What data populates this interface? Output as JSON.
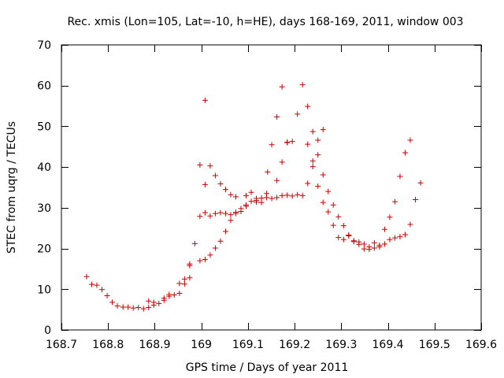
{
  "chart_data": {
    "type": "scatter",
    "title": "Rec. xmis (Lon=105, Lat=-10, h=HE), days 168-169, 2011, window 003",
    "xlabel": "GPS time / Days of year 2011",
    "ylabel": "STEC from uqrg / TECUs",
    "xlim": [
      168.7,
      169.6
    ],
    "ylim": [
      0,
      70
    ],
    "xticks": [
      "168.7",
      "168.8",
      "168.9",
      "169",
      "169.1",
      "169.2",
      "169.3",
      "169.4",
      "169.5",
      "169.6"
    ],
    "yticks": [
      "0",
      "10",
      "20",
      "30",
      "40",
      "50",
      "60",
      "70"
    ],
    "marker": "+",
    "color": "#cc0000",
    "grid": false,
    "series": [
      {
        "name": "STEC",
        "points": [
          [
            168.754,
            13.1
          ],
          [
            168.765,
            11.2
          ],
          [
            168.776,
            11.0
          ],
          [
            168.787,
            9.9
          ],
          [
            168.798,
            8.4
          ],
          [
            168.809,
            6.8
          ],
          [
            168.82,
            5.9
          ],
          [
            168.832,
            5.6
          ],
          [
            168.843,
            5.6
          ],
          [
            168.854,
            5.4
          ],
          [
            168.865,
            5.5
          ],
          [
            168.876,
            5.2
          ],
          [
            168.887,
            5.5
          ],
          [
            168.887,
            7.1
          ],
          [
            168.898,
            6.1
          ],
          [
            168.898,
            6.8
          ],
          [
            168.909,
            6.5
          ],
          [
            168.92,
            7.3
          ],
          [
            168.92,
            7.8
          ],
          [
            168.931,
            8.3
          ],
          [
            168.931,
            8.7
          ],
          [
            168.942,
            8.6
          ],
          [
            168.953,
            9.0
          ],
          [
            168.953,
            11.4
          ],
          [
            168.964,
            11.3
          ],
          [
            168.964,
            12.5
          ],
          [
            168.975,
            15.8
          ],
          [
            168.975,
            12.8
          ],
          [
            168.975,
            16.2
          ],
          [
            168.986,
            21.2
          ],
          [
            168.997,
            17.0
          ],
          [
            169.008,
            17.3
          ],
          [
            169.019,
            18.4
          ],
          [
            169.03,
            20.1
          ],
          [
            169.041,
            21.8
          ],
          [
            169.052,
            24.2
          ],
          [
            169.063,
            26.9
          ],
          [
            169.074,
            28.6
          ],
          [
            169.085,
            29.8
          ],
          [
            169.096,
            30.7
          ],
          [
            169.107,
            31.6
          ],
          [
            169.118,
            31.8
          ],
          [
            169.129,
            32.4
          ],
          [
            169.14,
            32.5
          ],
          [
            169.151,
            32.3
          ],
          [
            169.162,
            32.5
          ],
          [
            169.173,
            33.0
          ],
          [
            169.184,
            33.1
          ],
          [
            169.195,
            32.9
          ],
          [
            169.142,
            38.8
          ],
          [
            168.997,
            27.9
          ],
          [
            169.008,
            28.8
          ],
          [
            169.019,
            28.0
          ],
          [
            169.03,
            28.6
          ],
          [
            169.041,
            28.8
          ],
          [
            169.052,
            28.6
          ],
          [
            169.063,
            28.3
          ],
          [
            169.074,
            28.9
          ],
          [
            169.085,
            29.1
          ],
          [
            169.096,
            30.4
          ],
          [
            169.107,
            33.8
          ],
          [
            169.118,
            32.3
          ],
          [
            169.129,
            31.3
          ],
          [
            169.14,
            33.5
          ],
          [
            169.151,
            45.5
          ],
          [
            169.162,
            36.7
          ],
          [
            169.173,
            41.2
          ],
          [
            169.184,
            46.1
          ],
          [
            169.195,
            46.3
          ],
          [
            168.997,
            40.5
          ],
          [
            169.008,
            35.7
          ],
          [
            169.019,
            40.3
          ],
          [
            169.03,
            37.9
          ],
          [
            169.041,
            35.9
          ],
          [
            169.052,
            34.5
          ],
          [
            169.063,
            33.2
          ],
          [
            169.074,
            32.7
          ],
          [
            169.008,
            56.4
          ],
          [
            169.096,
            33.0
          ],
          [
            169.118,
            31.4
          ],
          [
            169.162,
            52.3
          ],
          [
            169.173,
            59.7
          ],
          [
            169.184,
            46.0
          ],
          [
            169.206,
            53.0
          ],
          [
            169.217,
            60.2
          ],
          [
            169.228,
            54.9
          ],
          [
            169.239,
            48.7
          ],
          [
            169.25,
            46.6
          ],
          [
            169.261,
            49.2
          ],
          [
            169.206,
            33.2
          ],
          [
            169.217,
            33.0
          ],
          [
            169.228,
            36.0
          ],
          [
            169.239,
            40.1
          ],
          [
            169.25,
            43.0
          ],
          [
            169.261,
            38.1
          ],
          [
            169.272,
            34.0
          ],
          [
            169.283,
            30.7
          ],
          [
            169.294,
            27.8
          ],
          [
            169.305,
            25.6
          ],
          [
            169.316,
            23.1
          ],
          [
            169.327,
            21.9
          ],
          [
            169.338,
            21.6
          ],
          [
            169.349,
            21.1
          ],
          [
            169.36,
            20.4
          ],
          [
            169.371,
            20.1
          ],
          [
            169.382,
            20.4
          ],
          [
            169.393,
            21.1
          ],
          [
            169.404,
            22.2
          ],
          [
            169.415,
            22.6
          ],
          [
            169.426,
            22.9
          ],
          [
            169.437,
            23.4
          ],
          [
            169.448,
            25.9
          ],
          [
            169.459,
            32.0
          ],
          [
            169.47,
            36.1
          ],
          [
            169.228,
            45.6
          ],
          [
            169.239,
            41.5
          ],
          [
            169.25,
            35.3
          ],
          [
            169.261,
            31.3
          ],
          [
            169.272,
            29.0
          ],
          [
            169.283,
            25.7
          ],
          [
            169.294,
            22.7
          ],
          [
            169.305,
            22.2
          ],
          [
            169.316,
            23.3
          ],
          [
            169.327,
            21.7
          ],
          [
            169.338,
            21.0
          ],
          [
            169.349,
            19.9
          ],
          [
            169.36,
            19.8
          ],
          [
            169.371,
            21.4
          ],
          [
            169.382,
            20.8
          ],
          [
            169.393,
            24.7
          ],
          [
            169.404,
            27.7
          ],
          [
            169.415,
            31.5
          ],
          [
            169.426,
            37.7
          ],
          [
            169.437,
            43.5
          ],
          [
            169.448,
            46.6
          ]
        ]
      }
    ]
  }
}
